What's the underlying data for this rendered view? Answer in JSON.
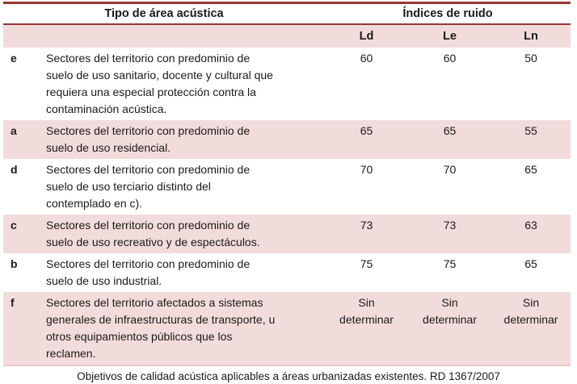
{
  "table": {
    "header": {
      "tipo": "Tipo de área acústica",
      "indices": "Índices de ruido"
    },
    "subheader": {
      "ld": "Ld",
      "le": "Le",
      "ln": "Ln"
    },
    "rows": [
      {
        "letter": "e",
        "description": "Sectores del territorio con predominio de\nsuelo de uso sanitario, docente y cultural que\nrequiera una especial protección contra la\ncontaminación acústica.",
        "ld": "60",
        "le": "60",
        "ln": "50",
        "shaded": false
      },
      {
        "letter": "a",
        "description": "Sectores del territorio con predominio de\nsuelo de uso residencial.",
        "ld": "65",
        "le": "65",
        "ln": "55",
        "shaded": true
      },
      {
        "letter": "d",
        "description": "Sectores del territorio con predominio de\nsuelo de uso terciario distinto del\ncontemplado en c).",
        "ld": "70",
        "le": "70",
        "ln": "65",
        "shaded": false
      },
      {
        "letter": "c",
        "description": "Sectores del territorio con predominio de\nsuelo de uso recreativo y de espectáculos.",
        "ld": "73",
        "le": "73",
        "ln": "63",
        "shaded": true
      },
      {
        "letter": "b",
        "description": "Sectores del territorio con predominio de\nsuelo de uso industrial.",
        "ld": "75",
        "le": "75",
        "ln": "65",
        "shaded": false
      },
      {
        "letter": "f",
        "description": "Sectores del territorio afectados a sistemas\ngenerales de infraestructuras de transporte, u\notros equipamientos públicos que los\nreclamen.",
        "ld": "Sin\ndeterminar",
        "le": "Sin\ndeterminar",
        "ln": "Sin\ndeterminar",
        "shaded": true
      }
    ],
    "caption": "Objetivos de calidad acústica aplicables a áreas urbanizadas existentes. RD 1367/2007"
  },
  "colors": {
    "accent_border": "#953735",
    "row_shading": "#f2dcdb",
    "text": "#1a1a1a"
  }
}
